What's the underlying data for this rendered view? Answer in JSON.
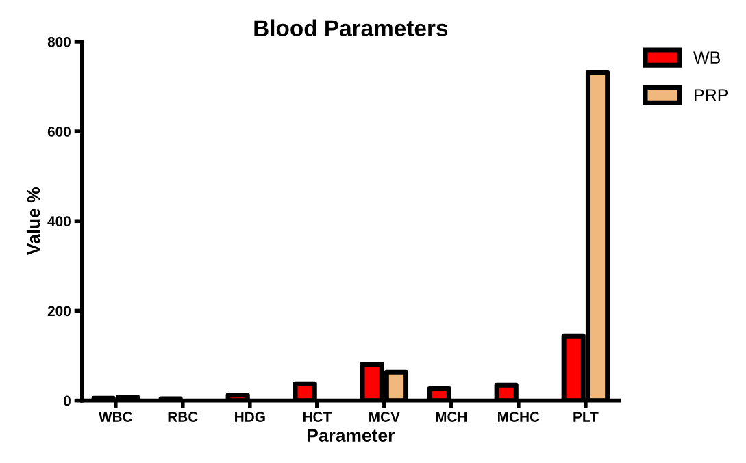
{
  "chart_data": {
    "type": "bar",
    "title": "Blood Parameters",
    "xlabel": "Parameter",
    "ylabel": "Value %",
    "categories": [
      "WBC",
      "RBC",
      "HDG",
      "HCT",
      "MCV",
      "MCH",
      "MCHC",
      "PLT"
    ],
    "series": [
      {
        "name": "WB",
        "color": "#ff0000",
        "values": [
          5,
          4,
          12,
          37,
          81,
          26,
          34,
          144
        ]
      },
      {
        "name": "PRP",
        "color": "#f0b87d",
        "values": [
          8,
          null,
          null,
          null,
          63,
          null,
          null,
          731
        ]
      }
    ],
    "ylim": [
      0,
      800
    ],
    "yticks": [
      0,
      200,
      400,
      600,
      800
    ],
    "grid": false,
    "legend": "top right"
  }
}
